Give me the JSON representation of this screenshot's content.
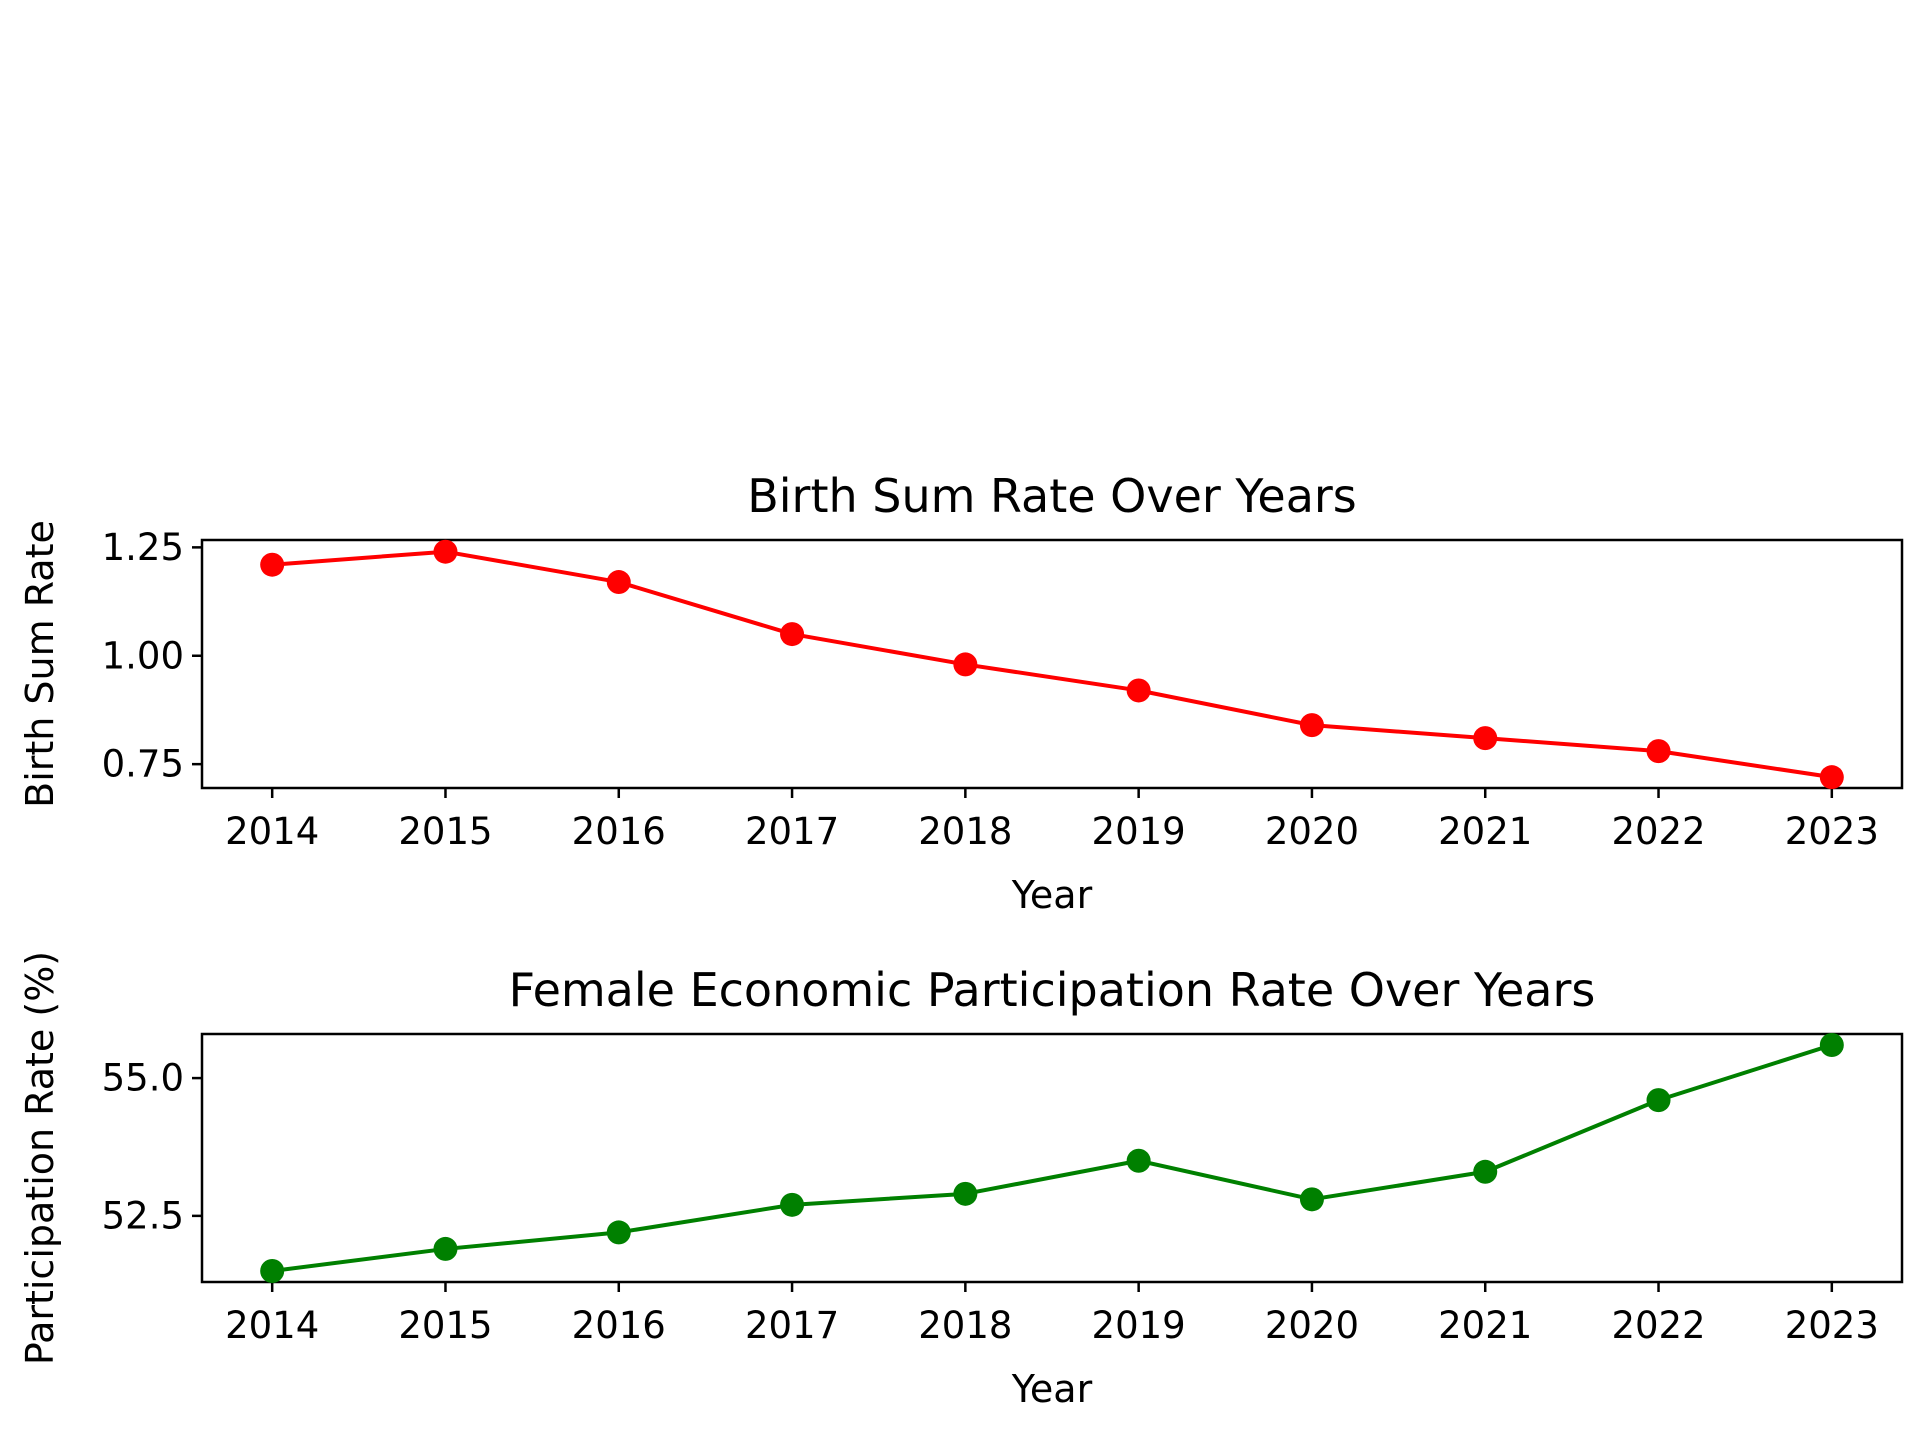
{
  "chart_data": [
    {
      "type": "line",
      "title": "Birth Sum Rate Over Years",
      "xlabel": "Year",
      "ylabel": "Birth Sum Rate",
      "x": [
        2014,
        2015,
        2016,
        2017,
        2018,
        2019,
        2020,
        2021,
        2022,
        2023
      ],
      "x_tick_labels": [
        "2014",
        "2015",
        "2016",
        "2017",
        "2018",
        "2019",
        "2020",
        "2021",
        "2022",
        "2023"
      ],
      "series": [
        {
          "values": [
            1.21,
            1.24,
            1.17,
            1.05,
            0.98,
            0.92,
            0.84,
            0.81,
            0.78,
            0.72
          ],
          "color": "#ff0000"
        }
      ],
      "yticks": [
        0.75,
        1.0,
        1.25
      ],
      "y_tick_labels": [
        "0.75",
        "1.00",
        "1.25"
      ],
      "ylim": [
        0.695,
        1.267
      ],
      "grid": false
    },
    {
      "type": "line",
      "title": "Female Economic Participation Rate Over Years",
      "xlabel": "Year",
      "ylabel": "Participation Rate (%)",
      "x": [
        2014,
        2015,
        2016,
        2017,
        2018,
        2019,
        2020,
        2021,
        2022,
        2023
      ],
      "x_tick_labels": [
        "2014",
        "2015",
        "2016",
        "2017",
        "2018",
        "2019",
        "2020",
        "2021",
        "2022",
        "2023"
      ],
      "series": [
        {
          "values": [
            51.5,
            51.9,
            52.2,
            52.7,
            52.9,
            53.5,
            52.8,
            53.3,
            54.6,
            55.6
          ],
          "color": "#008000"
        }
      ],
      "yticks": [
        52.5,
        55.0
      ],
      "y_tick_labels": [
        "52.5",
        "55.0"
      ],
      "ylim": [
        51.3,
        55.8
      ],
      "grid": false
    }
  ]
}
